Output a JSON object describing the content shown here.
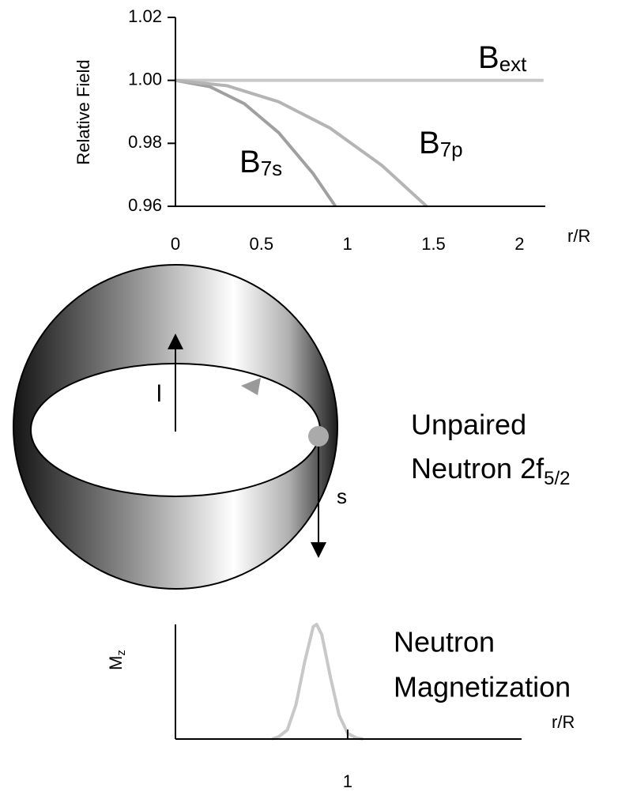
{
  "chart_data": [
    {
      "type": "line",
      "y_label": "Relative Field",
      "x_label": "r/R",
      "xlim": [
        0,
        2.15
      ],
      "ylim": [
        0.96,
        1.02
      ],
      "xticks": [
        0,
        0.5,
        1,
        1.5,
        2
      ],
      "yticks": [
        {
          "value": 0.96,
          "label": "0.96"
        },
        {
          "value": 0.98,
          "label": "0.98"
        },
        {
          "value": 1.0,
          "label": "1.00"
        },
        {
          "value": 1.02,
          "label": "1.02"
        }
      ],
      "series": [
        {
          "name": "B",
          "subscript": "ext",
          "color": "#c8c8c8",
          "x": [
            0,
            2.14
          ],
          "values": [
            1.0,
            1.0
          ]
        },
        {
          "name": "B",
          "subscript": "7s",
          "color": "#a0a0a0",
          "x": [
            0,
            0.2,
            0.4,
            0.6,
            0.8,
            0.93
          ],
          "values": [
            1.0,
            0.998,
            0.9926,
            0.9834,
            0.9704,
            0.96
          ]
        },
        {
          "name": "B",
          "subscript": "7p",
          "color": "#b4b4b4",
          "x": [
            0,
            0.3,
            0.6,
            0.9,
            1.2,
            1.46
          ],
          "values": [
            1.0,
            0.9983,
            0.9932,
            0.9848,
            0.973,
            0.96
          ]
        }
      ]
    },
    {
      "type": "line",
      "y_label": "M",
      "y_label_subscript": "z",
      "x_label": "r/R",
      "annotations": [
        "Neutron",
        "Magnetization"
      ],
      "xlim": [
        0,
        2.01
      ],
      "ylim": [
        0,
        1
      ],
      "xticks": [
        1
      ],
      "series": [
        {
          "color": "#c8c8c8",
          "x": [
            0.56,
            0.6,
            0.65,
            0.7,
            0.75,
            0.8,
            0.82,
            0.85,
            0.9,
            0.95,
            1.0,
            1.05,
            1.09
          ],
          "values": [
            0,
            0.02,
            0.08,
            0.3,
            0.67,
            0.98,
            1.0,
            0.91,
            0.54,
            0.21,
            0.05,
            0.01,
            0
          ]
        }
      ]
    }
  ],
  "diagram": {
    "orbital_label": "l",
    "spin_label": "s",
    "caption_lines": [
      "Unpaired",
      "Neutron 2f"
    ],
    "caption_subscript": "5/2"
  }
}
